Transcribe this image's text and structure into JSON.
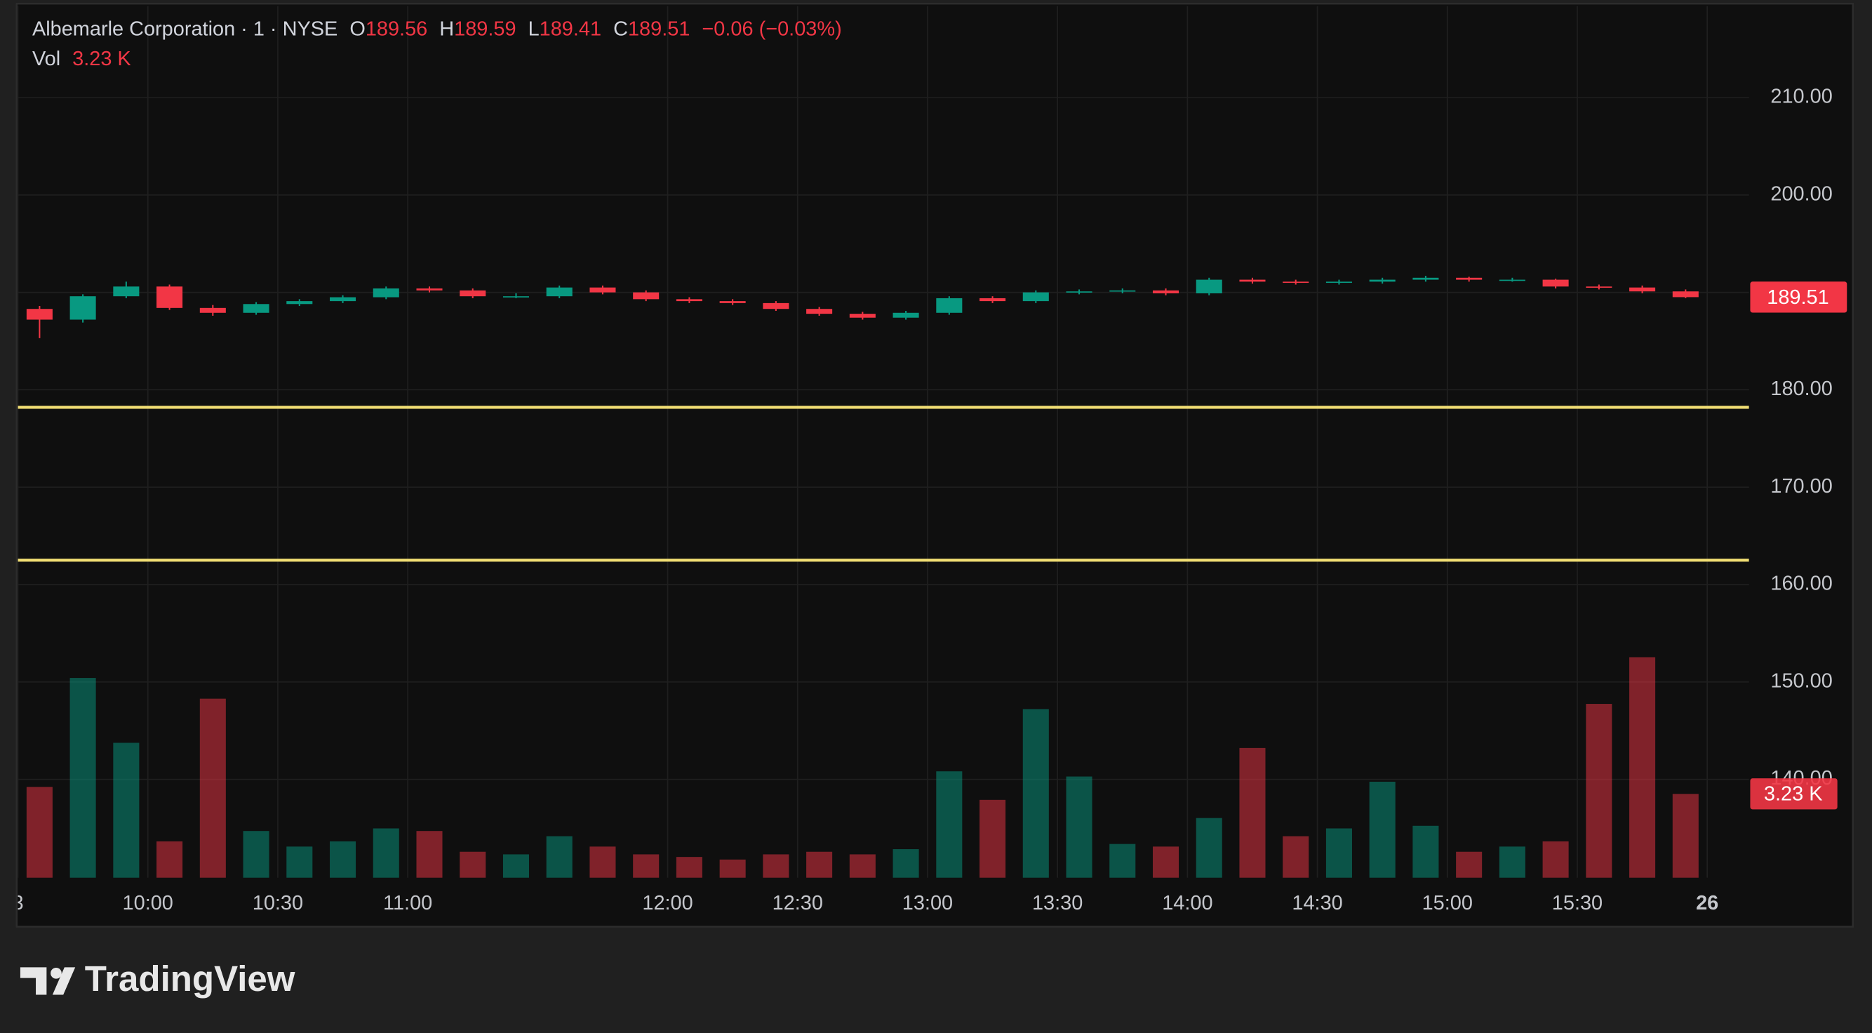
{
  "chart_data": {
    "type": "candlestick",
    "title": "Albemarle Corporation · 1 · NYSE",
    "ohlc_labels": [
      "O",
      "H",
      "L",
      "C"
    ],
    "ohlc": [
      189.56,
      189.59,
      189.41,
      189.51
    ],
    "change": "−0.06 (−0.03%)",
    "x": [
      "09:30",
      "09:40",
      "09:50",
      "10:00",
      "10:10",
      "10:20",
      "10:30",
      "10:40",
      "10:50",
      "11:00",
      "11:10",
      "11:20",
      "11:30",
      "11:40",
      "11:50",
      "12:00",
      "12:10",
      "12:20",
      "12:30",
      "12:40",
      "12:50",
      "13:00",
      "13:10",
      "13:20",
      "13:30",
      "13:40",
      "13:50",
      "14:00",
      "14:10",
      "14:20",
      "14:30",
      "14:40",
      "14:50",
      "15:00",
      "15:10",
      "15:20",
      "15:30",
      "15:40",
      "15:50"
    ],
    "open": [
      188.3,
      187.2,
      189.6,
      190.6,
      188.4,
      187.9,
      188.8,
      189.1,
      189.5,
      190.4,
      190.2,
      189.6,
      189.6,
      190.5,
      190.0,
      189.3,
      189.1,
      188.9,
      188.3,
      187.8,
      187.4,
      187.9,
      189.4,
      189.1,
      190.0,
      190.1,
      190.2,
      189.9,
      191.3,
      191.1,
      191.0,
      191.1,
      191.3,
      191.5,
      191.3,
      191.3,
      190.6,
      190.5,
      190.1
    ],
    "high": [
      188.6,
      189.8,
      191.1,
      190.8,
      188.7,
      189.0,
      189.3,
      189.7,
      190.6,
      190.6,
      190.4,
      189.9,
      190.7,
      190.7,
      190.2,
      189.5,
      189.3,
      189.1,
      188.5,
      188.0,
      188.1,
      189.6,
      189.6,
      190.2,
      190.3,
      190.4,
      190.4,
      191.5,
      191.5,
      191.3,
      191.3,
      191.5,
      191.7,
      191.6,
      191.5,
      191.4,
      190.8,
      190.7,
      190.3
    ],
    "low": [
      185.3,
      186.9,
      189.4,
      188.2,
      187.6,
      187.7,
      188.6,
      188.9,
      189.3,
      190.0,
      189.4,
      189.4,
      189.4,
      189.8,
      189.1,
      188.9,
      188.7,
      188.1,
      187.6,
      187.2,
      187.2,
      187.7,
      188.9,
      188.9,
      189.8,
      189.9,
      189.7,
      189.7,
      190.9,
      190.8,
      190.8,
      190.9,
      191.1,
      191.1,
      191.1,
      190.4,
      190.3,
      189.9,
      189.41
    ],
    "close": [
      187.2,
      189.6,
      190.6,
      188.4,
      187.9,
      188.8,
      189.1,
      189.5,
      190.4,
      190.2,
      189.6,
      189.6,
      190.5,
      190.0,
      189.3,
      189.1,
      188.9,
      188.3,
      187.8,
      187.4,
      187.9,
      189.4,
      189.1,
      190.0,
      190.1,
      190.2,
      189.9,
      191.3,
      191.1,
      191.0,
      191.1,
      191.3,
      191.5,
      191.3,
      191.3,
      190.6,
      190.5,
      190.1,
      189.51
    ],
    "up_color": "#089981",
    "down_color": "#f23645",
    "xlim": [
      "09:30",
      "16:00"
    ],
    "xticks": [
      {
        "value": "09:30",
        "label": "3"
      },
      "10:00",
      "10:30",
      "11:00",
      "12:00",
      "12:30",
      "13:00",
      "13:30",
      "14:00",
      "14:30",
      "15:00",
      "15:30",
      {
        "value": "16:00",
        "label": "26"
      }
    ],
    "ylim": [
      129.9,
      219.4
    ],
    "yticks": [
      {
        "value": 140,
        "label": "140.00"
      },
      {
        "value": 150,
        "label": "150.00"
      },
      {
        "value": 160,
        "label": "160.00"
      },
      {
        "value": 170,
        "label": "170.00"
      },
      {
        "value": 180,
        "label": "180.00"
      },
      {
        "value": 190,
        "label": "190.00"
      },
      {
        "value": 200,
        "label": "200.00"
      },
      {
        "value": 210,
        "label": "210.00"
      }
    ],
    "grid": true,
    "volume": {
      "name": "Vol",
      "ylim": [
        0,
        33.6
      ],
      "values": [
        3.5,
        7.7,
        5.2,
        1.4,
        6.9,
        1.8,
        1.2,
        1.4,
        1.9,
        1.8,
        1.0,
        0.9,
        1.6,
        1.2,
        0.9,
        0.8,
        0.7,
        0.9,
        1.0,
        0.9,
        1.1,
        4.1,
        3.0,
        6.5,
        3.9,
        1.3,
        1.2,
        2.3,
        5.0,
        1.6,
        1.9,
        3.7,
        2.0,
        1.0,
        1.2,
        1.4,
        6.7,
        8.5,
        3.23
      ],
      "value_labels": [
        null,
        null,
        null,
        null,
        null,
        null,
        null,
        null,
        null,
        null,
        null,
        null,
        null,
        null,
        null,
        null,
        null,
        null,
        null,
        null,
        null,
        null,
        null,
        null,
        null,
        null,
        null,
        null,
        null,
        null,
        null,
        null,
        null,
        null,
        null,
        null,
        null,
        null,
        "3.23 K"
      ]
    },
    "hlines": [
      178.2,
      162.5
    ],
    "hline_color": "#f2df74",
    "brand": "TradingView"
  }
}
